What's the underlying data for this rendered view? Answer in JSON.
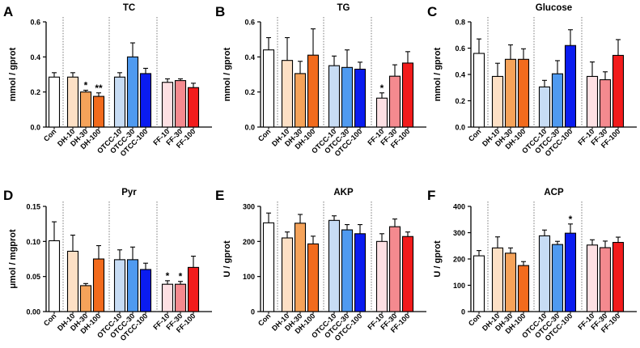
{
  "colors": {
    "Con": "#ffffff",
    "DH-10": "#fde0c5",
    "DH-30": "#f5a35a",
    "DH-100": "#f26b1d",
    "OTCC-10": "#c7dcf4",
    "OTCC-30": "#4f9af0",
    "OTCC-100": "#0a1cf0",
    "FF-10": "#fde0e3",
    "FF-30": "#f48a8f",
    "FF-100": "#f21b1b"
  },
  "chart_data": [
    {
      "panel": "A",
      "title": "TC",
      "type": "bar",
      "ylabel": "mmol / gprot",
      "ylim": [
        0,
        0.6
      ],
      "ticks": [
        "0.0",
        "0.2",
        "0.4",
        "0.6"
      ],
      "categories": [
        "Con",
        "DH-10",
        "DH-30",
        "DH-100",
        "OTCC-10",
        "OTCC-30",
        "OTCC-100",
        "FF-10",
        "FF-30",
        "FF-100"
      ],
      "values": [
        0.285,
        0.285,
        0.2,
        0.175,
        0.285,
        0.4,
        0.305,
        0.255,
        0.265,
        0.225
      ],
      "errors": [
        0.025,
        0.025,
        0.01,
        0.02,
        0.025,
        0.08,
        0.03,
        0.02,
        0.01,
        0.025
      ],
      "annotations": [
        "",
        "",
        "*",
        "**",
        "",
        "",
        "",
        "",
        "",
        ""
      ]
    },
    {
      "panel": "B",
      "title": "TG",
      "type": "bar",
      "ylabel": "mmol / gprot",
      "ylim": [
        0,
        0.6
      ],
      "ticks": [
        "0.0",
        "0.2",
        "0.4",
        "0.6"
      ],
      "categories": [
        "Con",
        "DH-10",
        "DH-30",
        "DH-100",
        "OTCC-10",
        "OTCC-30",
        "OTCC-100",
        "FF-10",
        "FF-30",
        "FF-100"
      ],
      "values": [
        0.44,
        0.38,
        0.305,
        0.41,
        0.35,
        0.34,
        0.33,
        0.165,
        0.29,
        0.365
      ],
      "errors": [
        0.07,
        0.13,
        0.07,
        0.15,
        0.055,
        0.1,
        0.04,
        0.03,
        0.065,
        0.065
      ],
      "annotations": [
        "",
        "",
        "",
        "",
        "",
        "",
        "",
        "*",
        "",
        ""
      ]
    },
    {
      "panel": "C",
      "title": "Glucose",
      "type": "bar",
      "ylabel": "mmol / gprot",
      "ylim": [
        0,
        0.8
      ],
      "ticks": [
        "0.0",
        "0.2",
        "0.4",
        "0.6",
        "0.8"
      ],
      "categories": [
        "Con",
        "DH-10",
        "DH-30",
        "DH-100",
        "OTCC-10",
        "OTCC-30",
        "OTCC-100",
        "FF-10",
        "FF-30",
        "FF-100"
      ],
      "values": [
        0.56,
        0.385,
        0.515,
        0.515,
        0.305,
        0.405,
        0.62,
        0.385,
        0.36,
        0.545
      ],
      "errors": [
        0.11,
        0.1,
        0.11,
        0.08,
        0.05,
        0.1,
        0.12,
        0.11,
        0.06,
        0.12
      ],
      "annotations": [
        "",
        "",
        "",
        "",
        "",
        "",
        "",
        "",
        "",
        ""
      ]
    },
    {
      "panel": "D",
      "title": "Pyr",
      "type": "bar",
      "ylabel": "μmol / mgprot",
      "ylim": [
        0,
        0.15
      ],
      "ticks": [
        "0.00",
        "0.05",
        "0.10",
        "0.15"
      ],
      "categories": [
        "Con",
        "DH-10",
        "DH-30",
        "DH-100",
        "OTCC-10",
        "OTCC-30",
        "OTCC-100",
        "FF-10",
        "FF-30",
        "FF-100"
      ],
      "values": [
        0.101,
        0.086,
        0.037,
        0.075,
        0.074,
        0.074,
        0.06,
        0.039,
        0.039,
        0.063
      ],
      "errors": [
        0.027,
        0.023,
        0.003,
        0.019,
        0.014,
        0.018,
        0.009,
        0.005,
        0.004,
        0.016
      ],
      "annotations": [
        "",
        "",
        "",
        "",
        "",
        "",
        "",
        "*",
        "*",
        ""
      ]
    },
    {
      "panel": "E",
      "title": "AKP",
      "type": "bar",
      "ylabel": "U / gprot",
      "ylim": [
        0,
        300
      ],
      "ticks": [
        "0",
        "100",
        "200",
        "300"
      ],
      "categories": [
        "Con",
        "DH-10",
        "DH-30",
        "DH-100",
        "OTCC-10",
        "OTCC-30",
        "OTCC-100",
        "FF-10",
        "FF-30",
        "FF-100"
      ],
      "values": [
        253,
        210,
        252,
        193,
        260,
        233,
        222,
        200,
        242,
        214
      ],
      "errors": [
        28,
        17,
        25,
        22,
        13,
        15,
        26,
        22,
        22,
        13
      ],
      "annotations": [
        "",
        "",
        "",
        "",
        "",
        "",
        "",
        "",
        "",
        ""
      ]
    },
    {
      "panel": "F",
      "title": "ACP",
      "type": "bar",
      "ylabel": "U / gprot",
      "ylim": [
        0,
        400
      ],
      "ticks": [
        "0",
        "100",
        "200",
        "300",
        "400"
      ],
      "categories": [
        "Con",
        "DH-10",
        "DH-30",
        "DH-100",
        "OTCC-10",
        "OTCC-30",
        "OTCC-100",
        "FF-10",
        "FF-30",
        "FF-100"
      ],
      "values": [
        212,
        242,
        222,
        175,
        288,
        255,
        298,
        253,
        243,
        263
      ],
      "errors": [
        20,
        42,
        20,
        15,
        22,
        12,
        35,
        20,
        25,
        20
      ],
      "annotations": [
        "",
        "",
        "",
        "",
        "",
        "",
        "*",
        "",
        "",
        ""
      ]
    }
  ]
}
